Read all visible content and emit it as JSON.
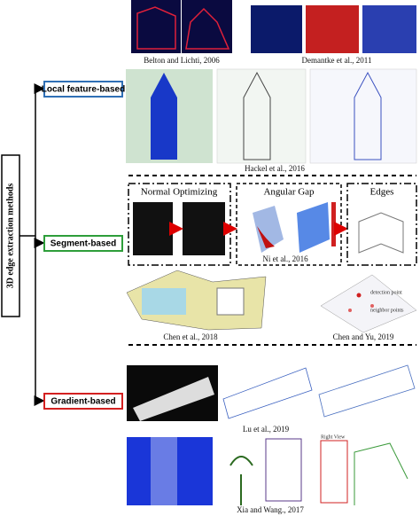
{
  "root_label": "3D edge extraction methods",
  "categories": [
    "Local feature-based",
    "Segment-based",
    "Gradient-based"
  ],
  "panels": {
    "titles": [
      "Normal Optimizing",
      "Angular Gap",
      "Edges"
    ],
    "annotations": [
      "detection point",
      "neighbor points",
      "Right View"
    ]
  },
  "captions": [
    "Belton and Lichti, 2006",
    "Demantke et al., 2011",
    "Hackel et al., 2016",
    "Ni et al., 2016",
    "Chen et al., 2018",
    "Chen and Yu, 2019",
    "Lu et al., 2019",
    "Xia and Wang., 2017"
  ]
}
